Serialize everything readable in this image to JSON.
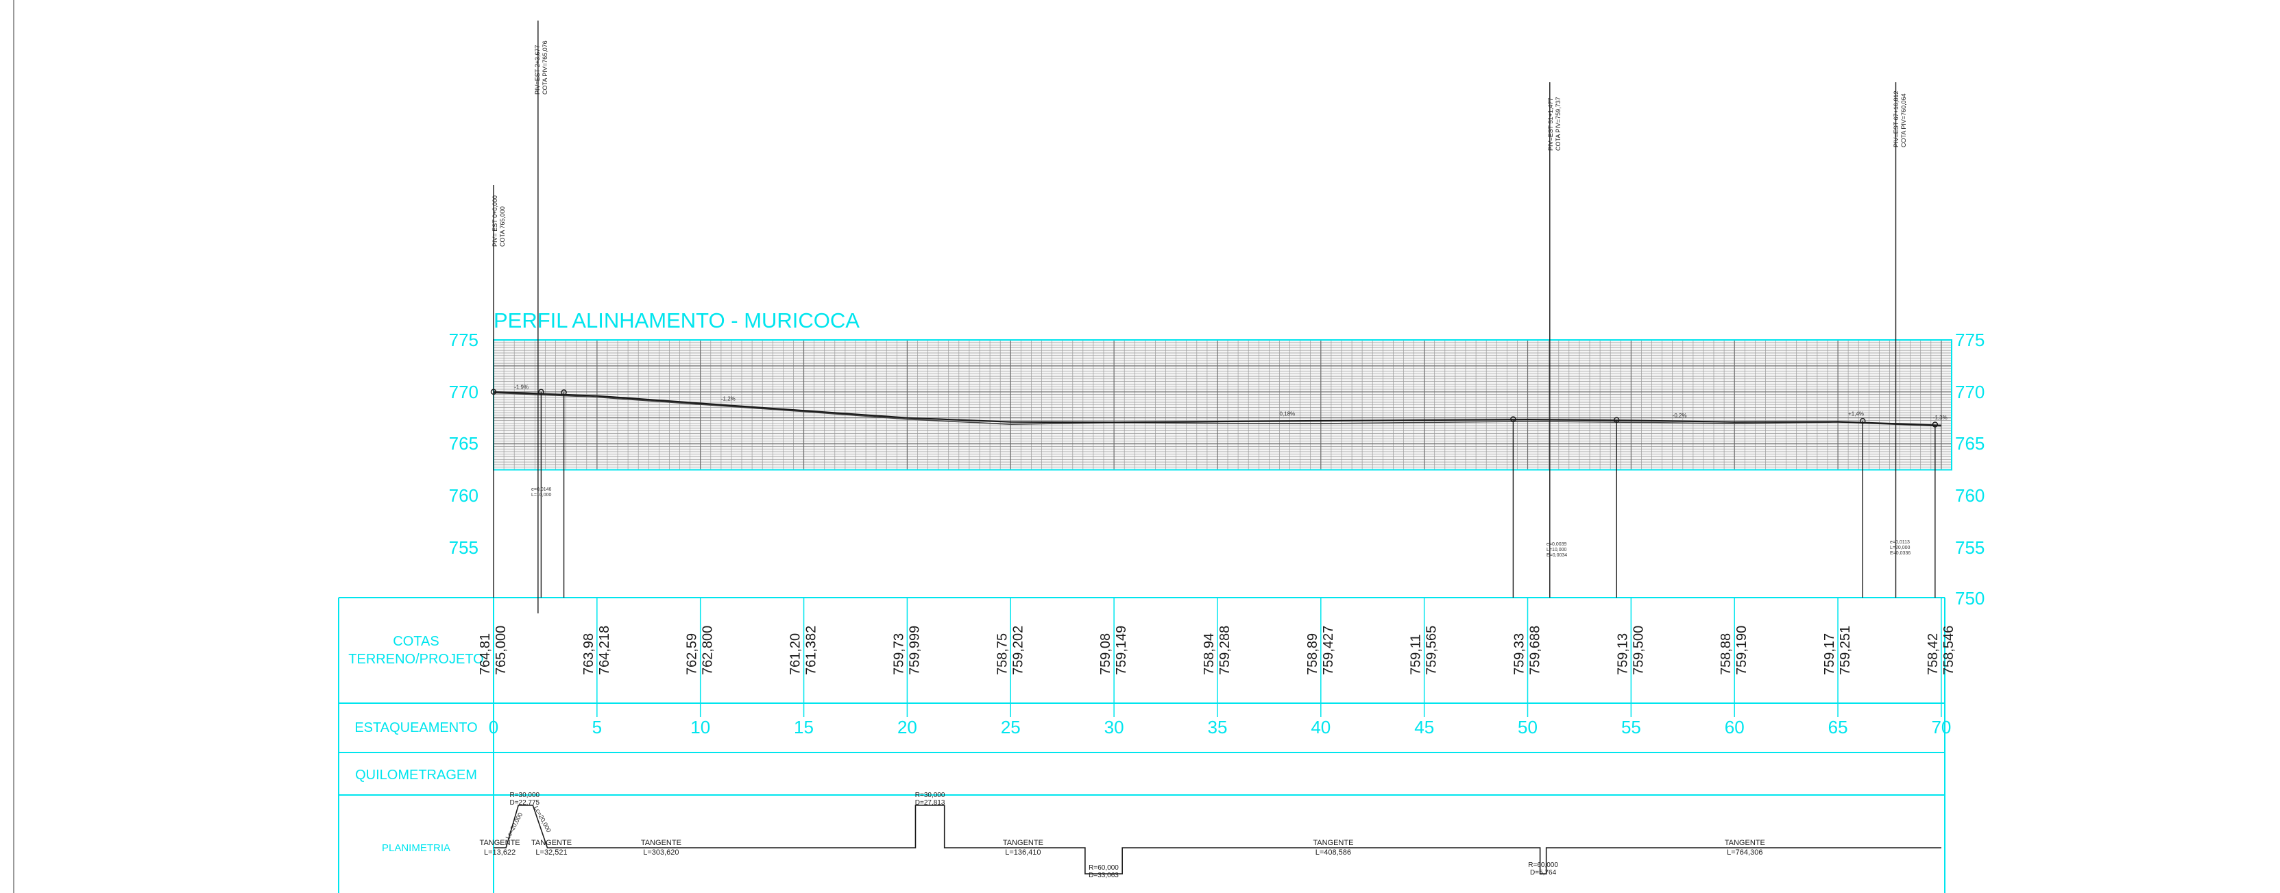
{
  "title": "PERFIL ALINHAMENTO - MURICOCA",
  "colors": {
    "accent": "#00e5ee",
    "grid": "#8a8a8a",
    "line": "#1a1a1a",
    "background": "#ffffff"
  },
  "y_axis_ticks": [
    "775",
    "770",
    "765",
    "760",
    "755",
    "750"
  ],
  "row_labels": {
    "cotas_line1": "COTAS",
    "cotas_line2": "TERRENO/PROJETO",
    "estaqueamento": "ESTAQUEAMENTO",
    "quilometragem": "QUILOMETRAGEM",
    "planimetria": "PLANIMETRIA"
  },
  "stations": [
    "0",
    "5",
    "10",
    "15",
    "20",
    "25",
    "30",
    "35",
    "40",
    "45",
    "50",
    "55",
    "60",
    "65",
    "70"
  ],
  "cotas": [
    {
      "station": 0,
      "terreno": "764,81",
      "projeto": "765,000"
    },
    {
      "station": 5,
      "terreno": "763,98",
      "projeto": "764,218"
    },
    {
      "station": 10,
      "terreno": "762,59",
      "projeto": "762,800"
    },
    {
      "station": 15,
      "terreno": "761,20",
      "projeto": "761,382"
    },
    {
      "station": 20,
      "terreno": "759,73",
      "projeto": "759,999"
    },
    {
      "station": 25,
      "terreno": "758,75",
      "projeto": "759,202"
    },
    {
      "station": 30,
      "terreno": "759,08",
      "projeto": "759,149"
    },
    {
      "station": 35,
      "terreno": "758,94",
      "projeto": "759,288"
    },
    {
      "station": 40,
      "terreno": "758,89",
      "projeto": "759,427"
    },
    {
      "station": 45,
      "terreno": "759,11",
      "projeto": "759,565"
    },
    {
      "station": 50,
      "terreno": "759,33",
      "projeto": "759,688"
    },
    {
      "station": 55,
      "terreno": "759,13",
      "projeto": "759,500"
    },
    {
      "station": 60,
      "terreno": "758,88",
      "projeto": "759,190"
    },
    {
      "station": 65,
      "terreno": "759,17",
      "projeto": "759,251"
    },
    {
      "station": 70,
      "terreno": "758,42",
      "projeto": "758,546"
    }
  ],
  "pivs": [
    {
      "line1": "PIV= EST 0+0,000",
      "line2": "COTA 765,000"
    },
    {
      "line1": "PIV=EST 2+3,677",
      "line2": "COTA PIV=765,076"
    },
    {
      "line1": "PIV=EST 51+1,477",
      "line2": "COTA PIV=759,737"
    },
    {
      "line1": "PIV=EST 67+16,812",
      "line2": "COTA PIV=760,064"
    }
  ],
  "grades": [
    "-1,9%",
    "-1,2%",
    "0,18%",
    "-0,2%",
    "+1,4%",
    "-1,3%"
  ],
  "vcurve_notes": [
    {
      "l1": "e=0,0146",
      "l2": "L=10,000"
    },
    {
      "l1": "e=0,0039",
      "l2": "L=10,000",
      "l3": "E=0,0034"
    },
    {
      "l1": "e=0,0113",
      "l2": "L=20,000",
      "l3": "E=0,0336"
    }
  ],
  "planimetria": {
    "tangents": [
      {
        "label": "TANGENTE",
        "length": "L=13,622"
      },
      {
        "label": "TANGENTE",
        "length": "L=32,521"
      },
      {
        "label": "TANGENTE",
        "length": "L=303,620"
      },
      {
        "label": "TANGENTE",
        "length": "L=136,410"
      },
      {
        "label": "TANGENTE",
        "length": "L=408,586"
      },
      {
        "label": "TANGENTE",
        "length": "L=764,306"
      }
    ],
    "curves": [
      {
        "r": "R=30,000",
        "d": "D=22,775",
        "lc1": "Lc=20,000",
        "lc2": "Lc=20,000"
      },
      {
        "r": "R=30,000",
        "d": "D=27,813"
      },
      {
        "r": "R=60,000",
        "d": "D=33,063"
      },
      {
        "r": "R=60,000",
        "d": "D=5,764"
      }
    ]
  }
}
